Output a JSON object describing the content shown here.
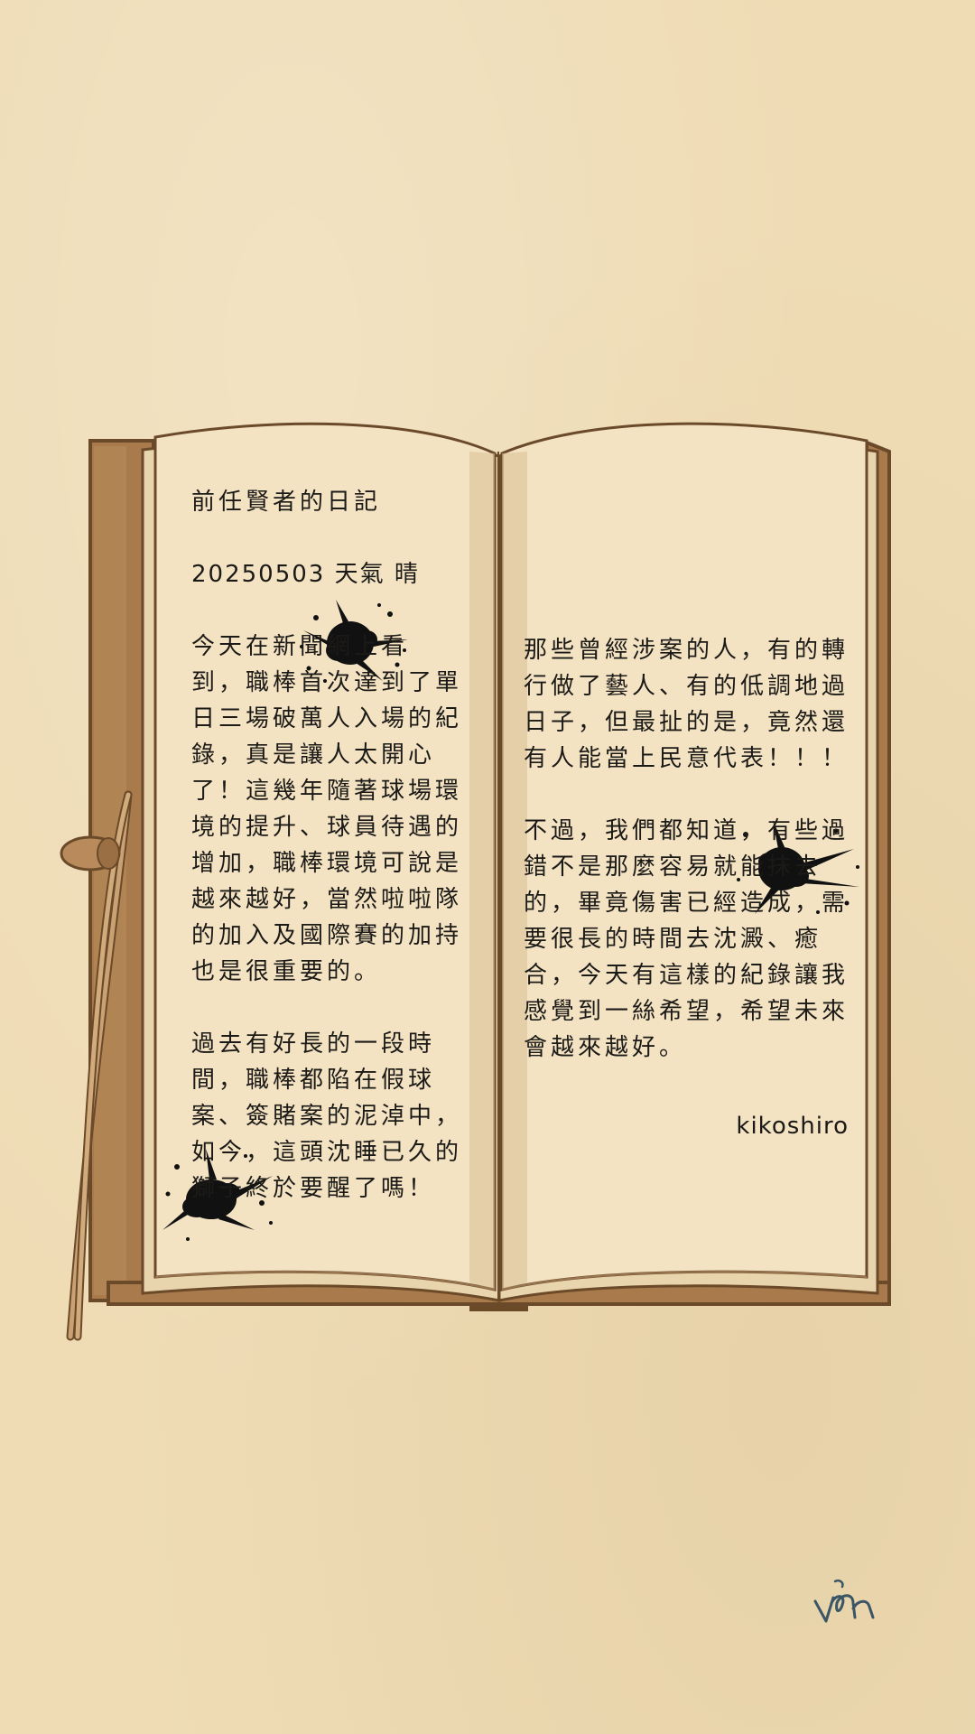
{
  "diary": {
    "left_page": {
      "title": "前任賢者的日記",
      "date_line": "20250503 天氣 晴",
      "paragraph1": [
        "今天在新聞網上看",
        "到，職棒首次達到了單",
        "日三場破萬人入場的紀",
        "錄，真是讓人太開心",
        "了！這幾年隨著球場環",
        "境的提升、球員待遇的",
        "增加，職棒環境可說是",
        "越來越好，當然啦啦隊",
        "的加入及國際賽的加持",
        "也是很重要的。"
      ],
      "paragraph2": [
        "過去有好長的一段時",
        "間，職棒都陷在假球",
        "案、簽賭案的泥淖中，",
        "如今，這頭沈睡已久的",
        "獅子終於要醒了嗎！"
      ]
    },
    "right_page": {
      "paragraph1": [
        "那些曾經涉案的人，有的轉",
        "行做了藝人、有的低調地過",
        "日子，但最扯的是，竟然還",
        "有人能當上民意代表！！！"
      ],
      "paragraph2": [
        "不過，我們都知道，有些過",
        "錯不是那麼容易就能抹去",
        "的，畢竟傷害已經造成，需",
        "要很長的時間去沈澱、癒",
        "合，今天有這樣的紀錄讓我",
        "感覺到一絲希望，希望未來",
        "會越來越好。"
      ],
      "signature": "kikoshiro"
    }
  },
  "colors": {
    "background": "#efdcb5",
    "page": "#f3e3c3",
    "cover": "#a97a4c",
    "outline": "#6b4a2a",
    "ink": "#1c1a17"
  },
  "icons": {
    "ink_splatters": [
      "ink-splatter-icon",
      "ink-splatter-icon",
      "ink-splatter-icon"
    ],
    "bookmark_ribbon": "bookmark-ribbon-icon",
    "artist_mark": "artist-mark-icon"
  }
}
